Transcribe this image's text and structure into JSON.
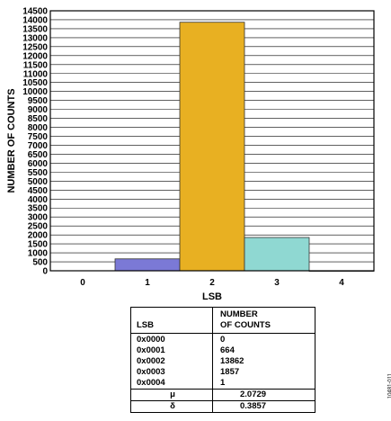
{
  "chart_data": {
    "type": "bar",
    "categories": [
      "0",
      "1",
      "2",
      "3",
      "4"
    ],
    "values": [
      0,
      664,
      13862,
      1857,
      1
    ],
    "bar_colors": [
      "#7b79d6",
      "#7b79d6",
      "#e8b022",
      "#8fd8d2",
      "#7b79d6"
    ],
    "xlabel": "LSB",
    "ylabel": "NUMBER OF COUNTS",
    "ylim": [
      0,
      14500
    ],
    "ytick_step": 500,
    "grid": true
  },
  "table": {
    "header": [
      "LSB",
      "NUMBER\nOF COUNTS"
    ],
    "rows": [
      [
        "0x0000",
        "0"
      ],
      [
        "0x0001",
        "664"
      ],
      [
        "0x0002",
        "13862"
      ],
      [
        "0x0003",
        "1857"
      ],
      [
        "0x0004",
        "1"
      ]
    ],
    "stats": [
      [
        "μ",
        "2.0729"
      ],
      [
        "δ",
        "0.3857"
      ]
    ]
  },
  "figure_id": "10481-011"
}
